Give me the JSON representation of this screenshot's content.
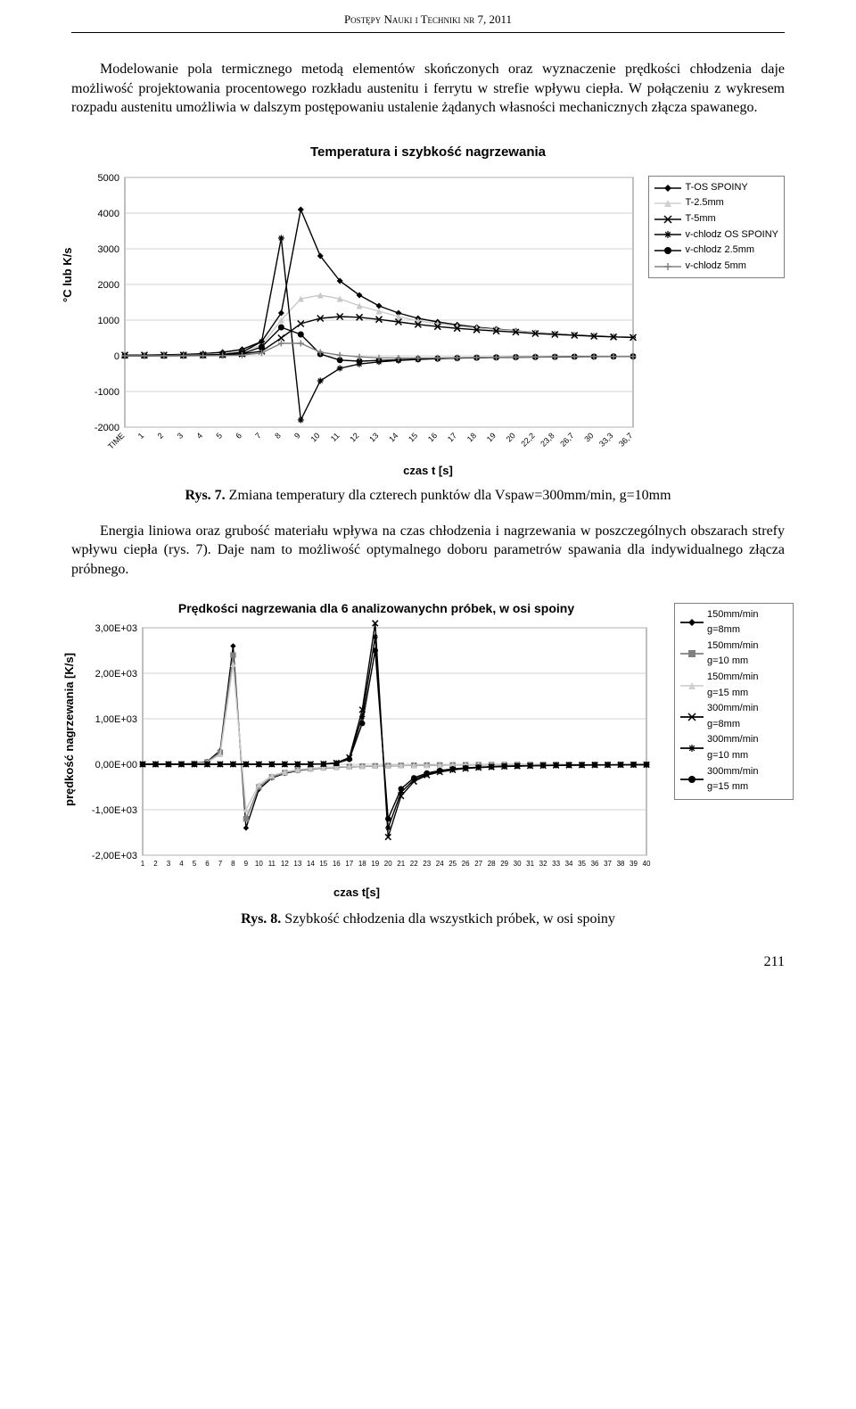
{
  "header": {
    "journal": "Postępy Nauki i Techniki nr 7, 2011"
  },
  "paragraph1": "Modelowanie pola termicznego metodą elementów skończonych oraz wyznaczenie prędkości chłodzenia daje możliwość projektowania procentowego rozkładu austenitu i ferrytu w strefie wpływu ciepła. W połączeniu z wykresem rozpadu austenitu umożliwia w dalszym postępowaniu ustalenie żądanych własności mechanicznych złącza spawanego.",
  "chart1": {
    "title": "Temperatura i szybkość nagrzewania",
    "ylabel": "°C lub K/s",
    "xlabel": "czas t [s]",
    "ylim": [
      -2000,
      5000
    ],
    "ytick_step": 1000,
    "xticks": [
      "TIME",
      "1",
      "2",
      "3",
      "4",
      "5",
      "6",
      "7",
      "8",
      "9",
      "10",
      "11",
      "12",
      "13",
      "14",
      "15",
      "16",
      "17",
      "18",
      "19",
      "20",
      "22,2",
      "23,8",
      "26,7",
      "30",
      "33,3",
      "36,7"
    ],
    "background_color": "#ffffff",
    "grid_color": "#c0c0c0",
    "legend": [
      {
        "label": "T-OS SPOINY",
        "color": "#000000",
        "marker": "diamond"
      },
      {
        "label": "T-2.5mm",
        "color": "#d0d0d0",
        "marker": "triangle"
      },
      {
        "label": "T-5mm",
        "color": "#000000",
        "marker": "x"
      },
      {
        "label": "v-chlodz OS SPOINY",
        "color": "#000000",
        "marker": "asterisk"
      },
      {
        "label": "v-chlodz 2.5mm",
        "color": "#000000",
        "marker": "circle"
      },
      {
        "label": "v-chlodz 5mm",
        "color": "#808080",
        "marker": "plus"
      }
    ],
    "series": {
      "t_os": [
        20,
        20,
        30,
        40,
        60,
        100,
        180,
        400,
        1200,
        4100,
        2800,
        2100,
        1700,
        1400,
        1200,
        1050,
        950,
        870,
        800,
        750,
        700,
        650,
        620,
        590,
        560,
        540,
        520
      ],
      "t_25": [
        20,
        20,
        20,
        25,
        35,
        60,
        120,
        300,
        1000,
        1600,
        1700,
        1600,
        1400,
        1250,
        1100,
        980,
        900,
        830,
        780,
        735,
        695,
        650,
        620,
        590,
        560,
        540,
        520
      ],
      "t_5": [
        20,
        20,
        20,
        20,
        22,
        30,
        55,
        130,
        500,
        900,
        1050,
        1100,
        1080,
        1020,
        950,
        880,
        820,
        770,
        730,
        695,
        665,
        625,
        600,
        575,
        550,
        530,
        515
      ],
      "v_os": [
        0,
        0,
        5,
        10,
        20,
        40,
        100,
        400,
        3300,
        -1800,
        -700,
        -350,
        -230,
        -170,
        -130,
        -100,
        -80,
        -65,
        -55,
        -45,
        -40,
        -35,
        -30,
        -25,
        -22,
        -20,
        -18
      ],
      "v_25": [
        0,
        0,
        0,
        3,
        8,
        20,
        60,
        250,
        800,
        600,
        50,
        -120,
        -150,
        -130,
        -110,
        -90,
        -75,
        -62,
        -52,
        -44,
        -38,
        -33,
        -28,
        -24,
        -21,
        -19,
        -17
      ],
      "v_5": [
        0,
        0,
        0,
        0,
        2,
        6,
        20,
        80,
        350,
        350,
        100,
        20,
        -30,
        -55,
        -62,
        -62,
        -58,
        -52,
        -46,
        -40,
        -35,
        -30,
        -26,
        -23,
        -20,
        -18,
        -16
      ]
    }
  },
  "caption1": {
    "prefix": "Rys. 7.",
    "text": " Zmiana temperatury dla czterech punktów dla Vspaw=300mm/min, g=10mm"
  },
  "paragraph2": "Energia liniowa oraz grubość materiału wpływa na czas chłodzenia i nagrzewania w poszczególnych obszarach strefy wpływu ciepła (rys. 7). Daje nam to możliwość optymalnego doboru parametrów spawania dla indywidualnego złącza próbnego.",
  "chart2": {
    "title": "Prędkości nagrzewania dla 6 analizowanychn próbek, w osi spoiny",
    "ylabel": "prędkość nagrzewania [K/s]",
    "xlabel": "czas t[s]",
    "ylim": [
      -2000,
      3000
    ],
    "yticks": [
      "-2,00E+03",
      "-1,00E+03",
      "0,00E+00",
      "1,00E+03",
      "2,00E+03",
      "3,00E+03"
    ],
    "xticks": [
      "1",
      "2",
      "3",
      "4",
      "5",
      "6",
      "7",
      "8",
      "9",
      "10",
      "11",
      "12",
      "13",
      "14",
      "15",
      "16",
      "17",
      "18",
      "19",
      "20",
      "21",
      "22",
      "23",
      "24",
      "25",
      "26",
      "27",
      "28",
      "29",
      "30",
      "31",
      "32",
      "33",
      "34",
      "35",
      "36",
      "37",
      "38",
      "39",
      "40"
    ],
    "background_color": "#ffffff",
    "grid_color": "#c0c0c0",
    "legend": [
      {
        "label1": "150mm/min",
        "label2": "g=8mm",
        "color": "#000000",
        "marker": "diamond"
      },
      {
        "label1": "150mm/min",
        "label2": "g=10 mm",
        "color": "#808080",
        "marker": "square"
      },
      {
        "label1": "150mm/min",
        "label2": "g=15 mm",
        "color": "#d0d0d0",
        "marker": "triangle"
      },
      {
        "label1": "300mm/min",
        "label2": "g=8mm",
        "color": "#000000",
        "marker": "x"
      },
      {
        "label1": "300mm/min",
        "label2": "g=10 mm",
        "color": "#000000",
        "marker": "asterisk"
      },
      {
        "label1": "300mm/min",
        "label2": "g=15 mm",
        "color": "#000000",
        "marker": "circle"
      }
    ],
    "series": {
      "a": [
        0,
        0,
        2,
        5,
        15,
        60,
        300,
        2600,
        -1400,
        -550,
        -300,
        -200,
        -140,
        -105,
        -82,
        -66,
        -54,
        -45,
        -38,
        -32,
        -28,
        -24,
        -21,
        -18,
        -16,
        -14,
        -13,
        -11,
        -10,
        -9,
        -8,
        -7,
        -7,
        -6,
        -6,
        -5,
        -5,
        -5,
        -4,
        -4
      ],
      "b": [
        0,
        0,
        2,
        4,
        12,
        50,
        260,
        2400,
        -1200,
        -500,
        -280,
        -185,
        -130,
        -98,
        -77,
        -62,
        -51,
        -42,
        -36,
        -30,
        -26,
        -23,
        -20,
        -17,
        -15,
        -13,
        -12,
        -11,
        -10,
        -9,
        -8,
        -7,
        -7,
        -6,
        -6,
        -5,
        -5,
        -5,
        -4,
        -4
      ],
      "c": [
        0,
        0,
        1,
        3,
        10,
        40,
        220,
        2200,
        -1000,
        -450,
        -250,
        -170,
        -120,
        -90,
        -71,
        -57,
        -47,
        -39,
        -33,
        -28,
        -24,
        -21,
        -18,
        -16,
        -14,
        -12,
        -11,
        -10,
        -9,
        -8,
        -7,
        -7,
        -6,
        -6,
        -5,
        -5,
        -5,
        -4,
        -4,
        -4
      ],
      "d": [
        0,
        0,
        0,
        0,
        0,
        0,
        0,
        0,
        0,
        0,
        0,
        0,
        0,
        2,
        8,
        30,
        150,
        1200,
        3100,
        -1600,
        -700,
        -380,
        -240,
        -170,
        -125,
        -95,
        -75,
        -61,
        -50,
        -42,
        -35,
        -30,
        -26,
        -22,
        -19,
        -17,
        -15,
        -13,
        -12,
        -11
      ],
      "e": [
        0,
        0,
        0,
        0,
        0,
        0,
        0,
        0,
        0,
        0,
        0,
        0,
        0,
        2,
        6,
        25,
        130,
        1050,
        2800,
        -1400,
        -620,
        -340,
        -220,
        -155,
        -115,
        -88,
        -70,
        -57,
        -47,
        -39,
        -33,
        -28,
        -24,
        -21,
        -18,
        -16,
        -14,
        -12,
        -11,
        -10
      ],
      "f": [
        0,
        0,
        0,
        0,
        0,
        0,
        0,
        0,
        0,
        0,
        0,
        0,
        0,
        1,
        5,
        20,
        110,
        900,
        2500,
        -1200,
        -540,
        -300,
        -195,
        -138,
        -103,
        -80,
        -64,
        -52,
        -43,
        -36,
        -30,
        -26,
        -22,
        -19,
        -17,
        -15,
        -13,
        -11,
        -10,
        -9
      ]
    }
  },
  "caption2": {
    "prefix": "Rys. 8.",
    "text": " Szybkość chłodzenia dla wszystkich próbek, w osi spoiny"
  },
  "page_number": "211"
}
